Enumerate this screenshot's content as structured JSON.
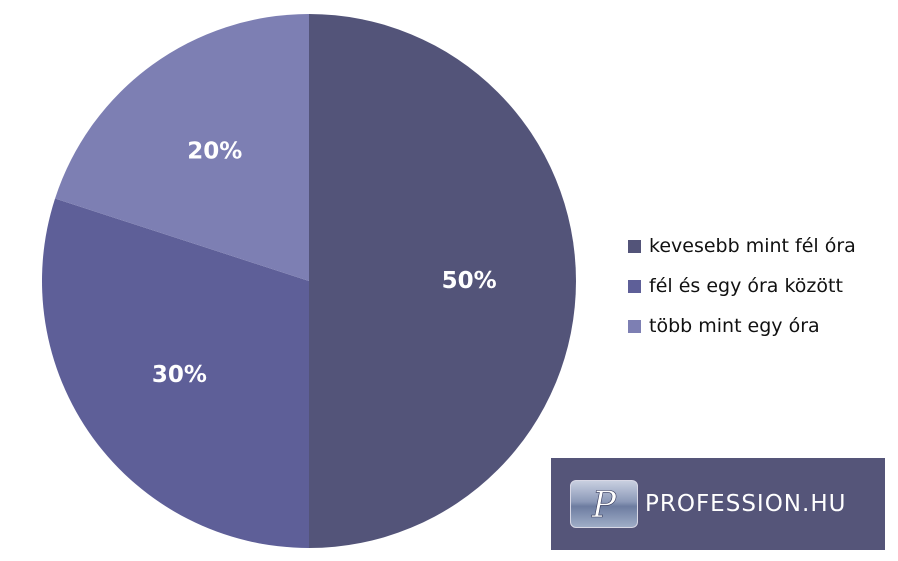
{
  "chart_data": {
    "type": "pie",
    "title": "",
    "categories": [
      "kevesebb mint fél óra",
      "fél és egy óra között",
      "több mint egy óra"
    ],
    "values": [
      50,
      30,
      20
    ],
    "value_labels": [
      "50%",
      "30%",
      "20%"
    ],
    "colors": [
      "#535479",
      "#5e5f98",
      "#7d7fb3"
    ],
    "start_angle_deg": 0,
    "direction": "clockwise",
    "legend_position": "right"
  },
  "logo": {
    "text": "PROFESSION.HU",
    "mark_letter": "P",
    "mark_icon": "profession-p-logo-icon",
    "background": "#555579"
  }
}
